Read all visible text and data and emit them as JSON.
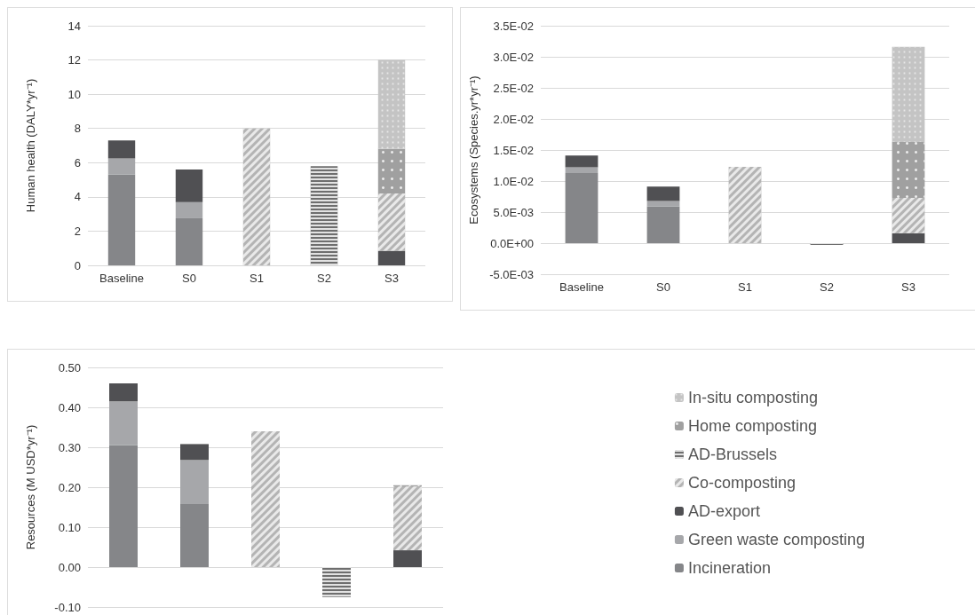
{
  "chart_data": [
    {
      "type": "bar",
      "stacked": true,
      "ylabel": "Human health (DALY*yr⁻¹)",
      "categories": [
        "Baseline",
        "S0",
        "S1",
        "S2",
        "S3"
      ],
      "ylim": [
        0,
        14
      ],
      "yticks": [
        0,
        2,
        4,
        6,
        8,
        10,
        12,
        14
      ],
      "grid": "y",
      "legend": false,
      "series": [
        {
          "color": "#858689",
          "values": [
            5.3,
            2.75,
            null,
            null,
            null
          ]
        },
        {
          "color": "#a6a7aa",
          "values": [
            0.95,
            0.95,
            null,
            null,
            null
          ]
        },
        {
          "color": "#505053",
          "values": [
            1.05,
            1.9,
            null,
            null,
            0.85
          ]
        },
        {
          "color": "#b4b4b4",
          "values": [
            null,
            null,
            8.0,
            null,
            3.35
          ]
        },
        {
          "color": "#6e6e6e",
          "values": [
            null,
            null,
            null,
            5.8,
            null
          ]
        },
        {
          "color": "#a0a0a0",
          "values": [
            null,
            null,
            null,
            null,
            2.6
          ]
        },
        {
          "color": "#c4c4c4",
          "values": [
            null,
            null,
            null,
            null,
            5.2
          ]
        }
      ]
    },
    {
      "type": "bar",
      "stacked": true,
      "ylabel": "Ecosystems (Species.yr*yr⁻¹)",
      "categories": [
        "Baseline",
        "S0",
        "S1",
        "S2",
        "S3"
      ],
      "ylim": [
        -0.005,
        0.035
      ],
      "yticks": [
        {
          "value": -0.005,
          "label": "-5.0E-03"
        },
        {
          "value": 0,
          "label": "0.0E+00"
        },
        {
          "value": 0.005,
          "label": "5.0E-03"
        },
        {
          "value": 0.01,
          "label": "1.0E-02"
        },
        {
          "value": 0.015,
          "label": "1.5E-02"
        },
        {
          "value": 0.02,
          "label": "2.0E-02"
        },
        {
          "value": 0.025,
          "label": "2.5E-02"
        },
        {
          "value": 0.03,
          "label": "3.0E-02"
        },
        {
          "value": 0.035,
          "label": "3.5E-02"
        }
      ],
      "grid": "y",
      "legend": false,
      "series": [
        {
          "color": "#858689",
          "values": [
            0.0113,
            0.0059,
            null,
            null,
            null
          ]
        },
        {
          "color": "#a6a7aa",
          "values": [
            0.0009,
            0.0009,
            null,
            null,
            null
          ]
        },
        {
          "color": "#505053",
          "values": [
            0.0019,
            0.0023,
            null,
            null,
            0.0016
          ]
        },
        {
          "color": "#b4b4b4",
          "values": [
            null,
            null,
            0.0123,
            null,
            0.0057
          ]
        },
        {
          "color": "#6e6e6e",
          "values": [
            null,
            null,
            null,
            -0.0003,
            null
          ]
        },
        {
          "color": "#a0a0a0",
          "values": [
            null,
            null,
            null,
            null,
            0.009
          ]
        },
        {
          "color": "#c4c4c4",
          "values": [
            null,
            null,
            null,
            null,
            0.0153
          ]
        }
      ]
    },
    {
      "type": "bar",
      "stacked": true,
      "ylabel": "Resources (M USD*yr⁻¹)",
      "categories": [
        null,
        null,
        null,
        null,
        null
      ],
      "tick_labels": "y",
      "ylim": [
        -0.1,
        0.5
      ],
      "yticks": [
        {
          "value": -0.1,
          "label": "-0.10"
        },
        {
          "value": 0,
          "label": "0.00"
        },
        {
          "value": 0.1,
          "label": "0.10"
        },
        {
          "value": 0.2,
          "label": "0.20"
        },
        {
          "value": 0.3,
          "label": "0.30"
        },
        {
          "value": 0.4,
          "label": "0.40"
        },
        {
          "value": 0.5,
          "label": "0.50"
        }
      ],
      "grid": "y",
      "legend": "right",
      "series": [
        {
          "name": "Incineration",
          "color": "#858689",
          "values": [
            0.305,
            0.158,
            null,
            null,
            null
          ]
        },
        {
          "name": "Green waste composting",
          "color": "#a6a7aa",
          "values": [
            0.11,
            0.11,
            null,
            null,
            null
          ]
        },
        {
          "name": "AD-export",
          "color": "#505053",
          "values": [
            0.045,
            0.04,
            null,
            null,
            0.042
          ]
        },
        {
          "name": "Co-composting",
          "color": "#b4b4b4",
          "values": [
            null,
            null,
            0.34,
            null,
            0.16
          ]
        },
        {
          "name": "AD-Brussels",
          "color": "#6e6e6e",
          "values": [
            null,
            null,
            null,
            -0.075,
            null
          ]
        },
        {
          "name": "Home composting",
          "color": "#a0a0a0",
          "values": [
            null,
            null,
            null,
            null,
            0.003
          ]
        },
        {
          "name": "In-situ composting",
          "color": "#c4c4c4",
          "values": [
            null,
            null,
            null,
            null,
            null
          ]
        }
      ]
    }
  ]
}
